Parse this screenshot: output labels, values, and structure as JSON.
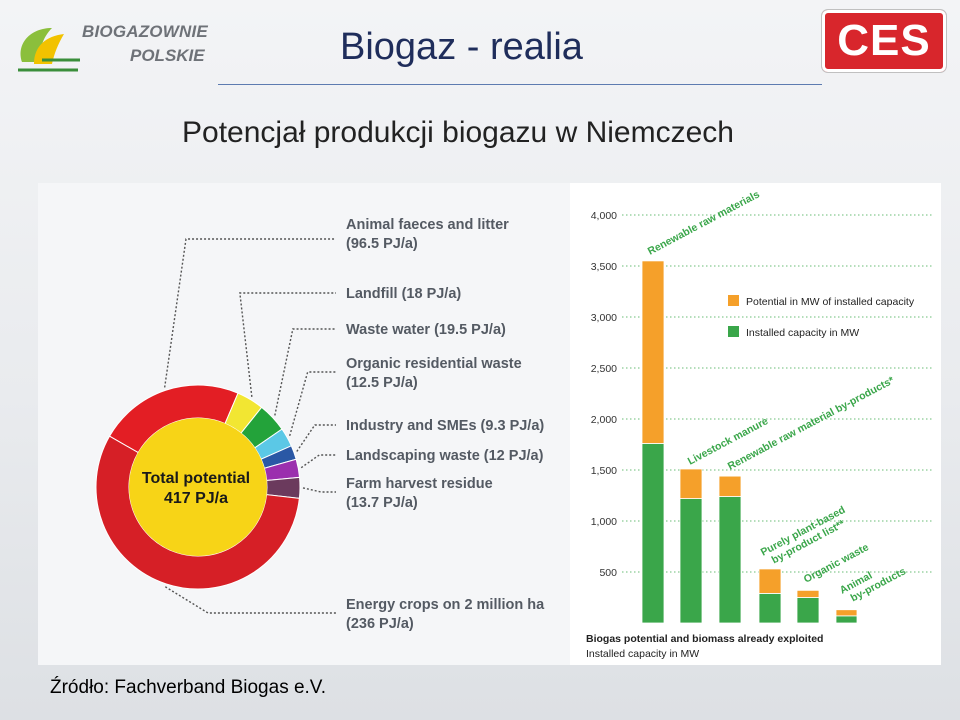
{
  "header": {
    "logo_left_line1": "BIOGAZOWNIE",
    "logo_left_line2": "POLSKIE",
    "logo_right": "CES",
    "title": "Biogaz - realia",
    "subtitle": "Potencjał produkcji biogazu w Niemczech"
  },
  "source": "Źródło: Fachverband Biogas e.V.",
  "colors": {
    "pie_energy_crops": "#d61f26",
    "pie_center": "#f7d417",
    "pie_animal": "#e31e24",
    "pie_landfill": "#f2e632",
    "pie_wastewater": "#23a33a",
    "pie_organic_res": "#5bc8e6",
    "pie_industry": "#2a58a5",
    "pie_landscaping": "#9b2fae",
    "pie_farm": "#6b3a5d",
    "potential": "#f5a02a",
    "installed": "#3aa64a"
  },
  "chart_data": [
    {
      "type": "pie",
      "center_label_line1": "Total potential",
      "center_label_line2": "417 PJ/a",
      "slices": [
        {
          "label": "Animal faeces and litter",
          "detail": "(96.5 PJ/a)",
          "value": 96.5,
          "color_key": "pie_animal"
        },
        {
          "label": "Landfill (18 PJ/a)",
          "detail": "",
          "value": 18,
          "color_key": "pie_landfill"
        },
        {
          "label": "Waste water (19.5 PJ/a)",
          "detail": "",
          "value": 19.5,
          "color_key": "pie_wastewater"
        },
        {
          "label": "Organic residential waste",
          "detail": "(12.5 PJ/a)",
          "value": 12.5,
          "color_key": "pie_organic_res"
        },
        {
          "label": "Industry and SMEs (9.3 PJ/a)",
          "detail": "",
          "value": 9.3,
          "color_key": "pie_industry"
        },
        {
          "label": "Landscaping waste  (12 PJ/a)",
          "detail": "",
          "value": 12,
          "color_key": "pie_landscaping"
        },
        {
          "label": "Farm harvest residue",
          "detail": "(13.7 PJ/a)",
          "value": 13.7,
          "color_key": "pie_farm"
        },
        {
          "label": "Energy crops on 2 million ha",
          "detail": "(236 PJ/a)",
          "value": 236,
          "color_key": "pie_energy_crops"
        }
      ]
    },
    {
      "type": "bar",
      "stacked": true,
      "ylim": [
        0,
        4000
      ],
      "yticks": [
        500,
        1000,
        1500,
        2000,
        2500,
        3000,
        3500,
        4000
      ],
      "ytick_labels": [
        "500",
        "1,000",
        "1,500",
        "2,000",
        "2,500",
        "3,000",
        "3,500",
        "4,000"
      ],
      "grid": true,
      "legend_position": "top-right",
      "categories": [
        "Renewable raw materials",
        "Livestock manure",
        "Renewable raw material by-products*",
        "Purely plant-based by-product list**",
        "Organic waste",
        "Animal by-products"
      ],
      "series": [
        {
          "name": "Installed capacity in MW",
          "color_key": "installed",
          "values": [
            1760,
            1220,
            1240,
            290,
            250,
            70
          ]
        },
        {
          "name": "Potential in MW of installed capacity",
          "color_key": "potential",
          "values": [
            1790,
            290,
            200,
            240,
            70,
            60
          ]
        }
      ],
      "category_annotations": [
        {
          "line1": "Renewable raw materials",
          "line2": ""
        },
        {
          "line1": "Livestock manure",
          "line2": ""
        },
        {
          "line1": "Renewable raw material by-products*",
          "line2": ""
        },
        {
          "line1": "Purely plant-based",
          "line2": "by-product list**"
        },
        {
          "line1": "Organic waste",
          "line2": ""
        },
        {
          "line1": "Animal",
          "line2": "by-products"
        }
      ],
      "caption_line1": "Biogas potential and biomass already exploited",
      "caption_line2": "Installed capacity in MW"
    }
  ]
}
